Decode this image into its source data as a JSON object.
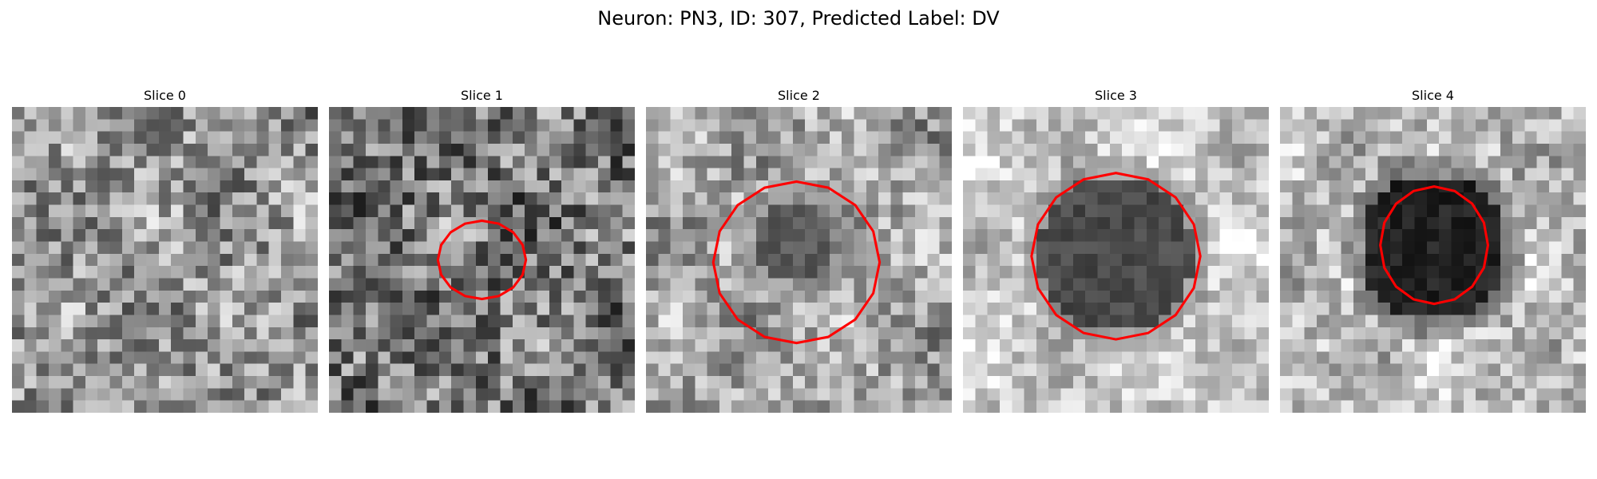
{
  "figure": {
    "title": "Neuron: PN3, ID: 307, Predicted Label: DV"
  },
  "panels": [
    {
      "title": "Slice 0",
      "contour": null
    },
    {
      "title": "Slice 1",
      "contour": {
        "cx": 12.5,
        "cy": 12.5,
        "rx": 3.6,
        "ry": 3.2
      }
    },
    {
      "title": "Slice 2",
      "contour": {
        "cx": 12.3,
        "cy": 12.7,
        "rx": 6.8,
        "ry": 6.6
      }
    },
    {
      "title": "Slice 3",
      "contour": {
        "cx": 12.5,
        "cy": 12.2,
        "rx": 6.9,
        "ry": 6.8
      }
    },
    {
      "title": "Slice 4",
      "contour": {
        "cx": 12.6,
        "cy": 11.3,
        "rx": 4.4,
        "ry": 4.8
      }
    }
  ],
  "colors": {
    "contour": "#ff0000"
  }
}
